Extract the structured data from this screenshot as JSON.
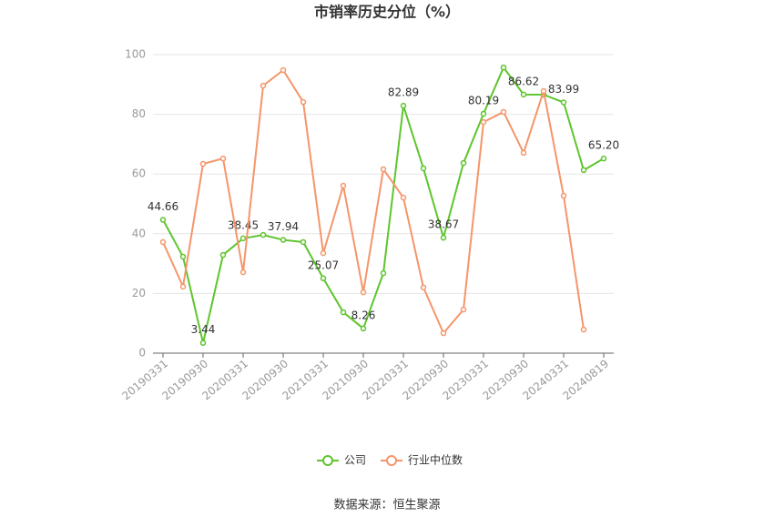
{
  "chart_data": {
    "type": "line",
    "title": "市销率历史分位（%）",
    "categories": [
      "20190331",
      null,
      "20190930",
      null,
      "20200331",
      null,
      "20200930",
      null,
      "20210331",
      null,
      "20210930",
      null,
      "20220331",
      null,
      "20220930",
      null,
      "20230331",
      null,
      "20230930",
      null,
      "20240331",
      null,
      "20240819"
    ],
    "series": [
      {
        "name": "公司",
        "color": "#5ec52d",
        "values": [
          44.66,
          32.3,
          3.44,
          32.9,
          38.45,
          39.6,
          37.94,
          37.2,
          25.07,
          13.7,
          8.26,
          26.8,
          82.89,
          61.9,
          38.67,
          63.7,
          80.19,
          95.7,
          86.62,
          86.6,
          83.99,
          61.3,
          65.2
        ],
        "value_labels": [
          "44.66",
          null,
          "3.44",
          null,
          "38.45",
          null,
          "37.94",
          null,
          "25.07",
          null,
          "8.26",
          null,
          "82.89",
          null,
          "38.67",
          null,
          "80.19",
          null,
          "86.62",
          null,
          "83.99",
          null,
          "65.20"
        ]
      },
      {
        "name": "行业中位数",
        "color": "#f5956a",
        "values": [
          37.2,
          22.3,
          63.4,
          65.2,
          27.1,
          89.6,
          94.8,
          84.1,
          33.5,
          56.1,
          20.4,
          61.6,
          52.1,
          22.0,
          6.7,
          14.6,
          77.4,
          80.8,
          67.1,
          87.8,
          52.7,
          7.9,
          null
        ]
      }
    ],
    "ylim": [
      0,
      100
    ],
    "yticks": [
      0,
      20,
      40,
      60,
      80,
      100
    ],
    "grid": true,
    "source": "数据来源：恒生聚源"
  }
}
